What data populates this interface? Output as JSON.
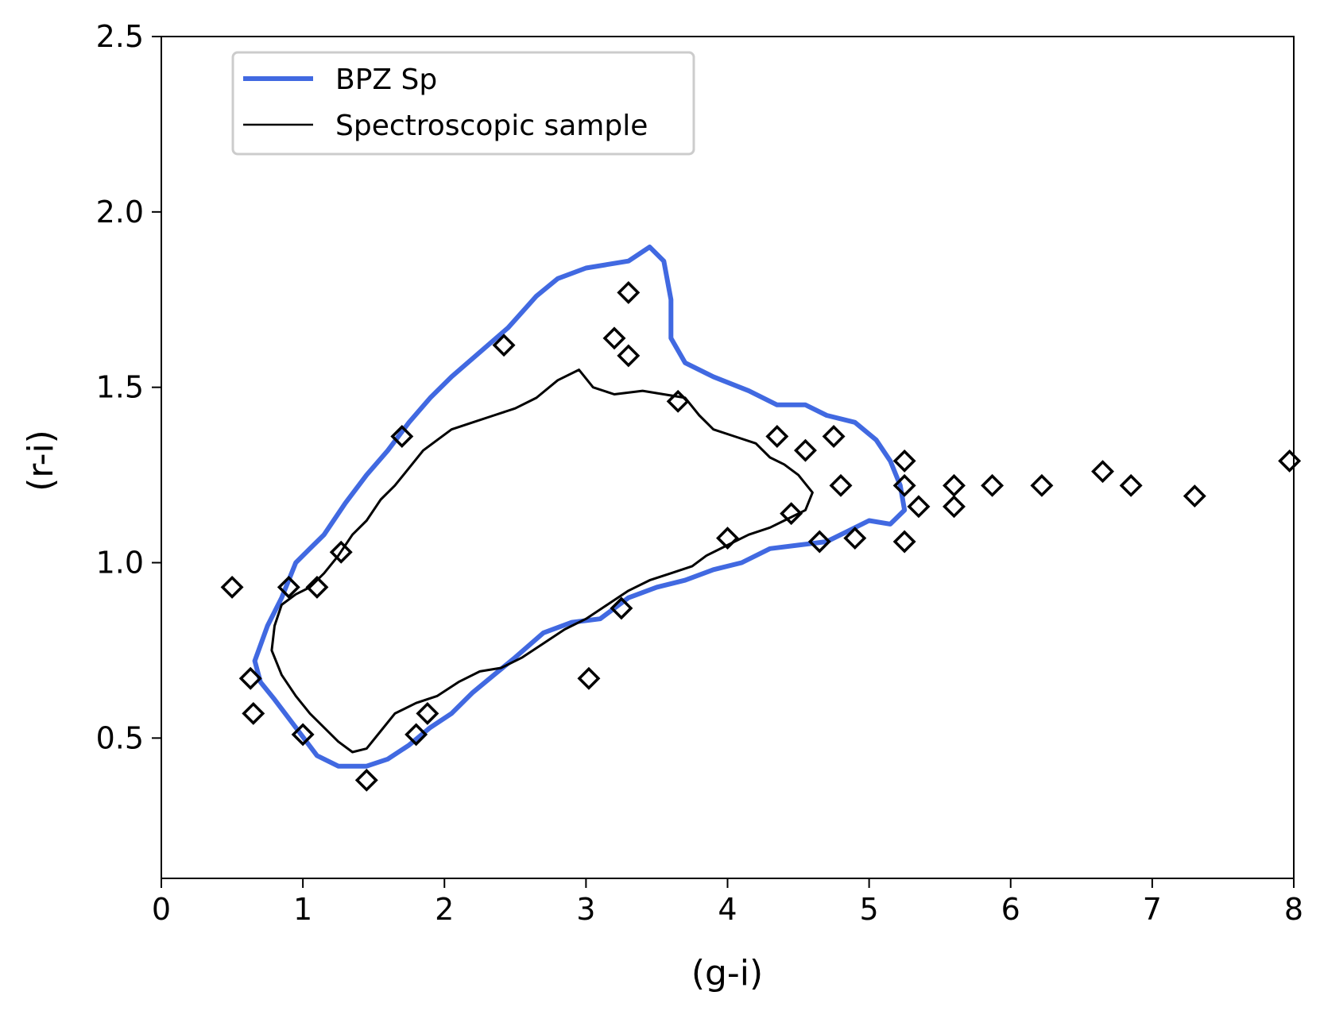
{
  "chart_data": {
    "type": "line",
    "xlabel": "(g-i)",
    "ylabel": "(r-i)",
    "xlim": [
      0,
      8
    ],
    "ylim": [
      0.1,
      2.5
    ],
    "x_ticks": [
      "0",
      "1",
      "2",
      "3",
      "4",
      "5",
      "6",
      "7",
      "8"
    ],
    "y_ticks": [
      "0.5",
      "1.0",
      "1.5",
      "2.0",
      "2.5"
    ],
    "grid": false,
    "legend_position": "upper-left",
    "legend": {
      "bpz": "BPZ Sp",
      "spec": "Spectroscopic sample"
    },
    "colors": {
      "bpz": "#4169e1",
      "spec": "#000000"
    },
    "series": [
      {
        "name": "BPZ Sp",
        "closed": true,
        "points": [
          [
            0.66,
            0.72
          ],
          [
            0.75,
            0.82
          ],
          [
            0.85,
            0.9
          ],
          [
            0.95,
            1.0
          ],
          [
            1.05,
            1.04
          ],
          [
            1.15,
            1.08
          ],
          [
            1.3,
            1.17
          ],
          [
            1.45,
            1.25
          ],
          [
            1.6,
            1.32
          ],
          [
            1.75,
            1.4
          ],
          [
            1.9,
            1.47
          ],
          [
            2.05,
            1.53
          ],
          [
            2.25,
            1.6
          ],
          [
            2.45,
            1.67
          ],
          [
            2.65,
            1.76
          ],
          [
            2.8,
            1.81
          ],
          [
            3.0,
            1.84
          ],
          [
            3.15,
            1.85
          ],
          [
            3.3,
            1.86
          ],
          [
            3.45,
            1.9
          ],
          [
            3.55,
            1.86
          ],
          [
            3.6,
            1.75
          ],
          [
            3.6,
            1.64
          ],
          [
            3.7,
            1.57
          ],
          [
            3.9,
            1.53
          ],
          [
            4.15,
            1.49
          ],
          [
            4.35,
            1.45
          ],
          [
            4.55,
            1.45
          ],
          [
            4.7,
            1.42
          ],
          [
            4.9,
            1.4
          ],
          [
            5.05,
            1.35
          ],
          [
            5.15,
            1.29
          ],
          [
            5.22,
            1.22
          ],
          [
            5.25,
            1.15
          ],
          [
            5.15,
            1.11
          ],
          [
            5.0,
            1.12
          ],
          [
            4.85,
            1.09
          ],
          [
            4.7,
            1.06
          ],
          [
            4.5,
            1.05
          ],
          [
            4.3,
            1.04
          ],
          [
            4.1,
            1.0
          ],
          [
            3.9,
            0.98
          ],
          [
            3.7,
            0.95
          ],
          [
            3.5,
            0.93
          ],
          [
            3.3,
            0.9
          ],
          [
            3.1,
            0.84
          ],
          [
            2.9,
            0.83
          ],
          [
            2.7,
            0.8
          ],
          [
            2.5,
            0.73
          ],
          [
            2.35,
            0.68
          ],
          [
            2.2,
            0.63
          ],
          [
            2.05,
            0.57
          ],
          [
            1.9,
            0.53
          ],
          [
            1.75,
            0.48
          ],
          [
            1.6,
            0.44
          ],
          [
            1.45,
            0.42
          ],
          [
            1.25,
            0.42
          ],
          [
            1.1,
            0.45
          ],
          [
            0.95,
            0.53
          ],
          [
            0.8,
            0.61
          ],
          [
            0.7,
            0.66
          ]
        ]
      },
      {
        "name": "Spectroscopic sample",
        "closed": true,
        "points": [
          [
            0.8,
            0.82
          ],
          [
            0.85,
            0.88
          ],
          [
            0.95,
            0.91
          ],
          [
            1.05,
            0.93
          ],
          [
            1.15,
            0.97
          ],
          [
            1.25,
            1.02
          ],
          [
            1.35,
            1.08
          ],
          [
            1.45,
            1.12
          ],
          [
            1.55,
            1.18
          ],
          [
            1.65,
            1.22
          ],
          [
            1.75,
            1.27
          ],
          [
            1.85,
            1.32
          ],
          [
            1.95,
            1.35
          ],
          [
            2.05,
            1.38
          ],
          [
            2.2,
            1.4
          ],
          [
            2.35,
            1.42
          ],
          [
            2.5,
            1.44
          ],
          [
            2.65,
            1.47
          ],
          [
            2.8,
            1.52
          ],
          [
            2.95,
            1.55
          ],
          [
            3.05,
            1.5
          ],
          [
            3.2,
            1.48
          ],
          [
            3.4,
            1.49
          ],
          [
            3.55,
            1.48
          ],
          [
            3.7,
            1.47
          ],
          [
            3.8,
            1.42
          ],
          [
            3.9,
            1.38
          ],
          [
            4.05,
            1.36
          ],
          [
            4.2,
            1.34
          ],
          [
            4.3,
            1.3
          ],
          [
            4.4,
            1.28
          ],
          [
            4.5,
            1.25
          ],
          [
            4.6,
            1.2
          ],
          [
            4.55,
            1.15
          ],
          [
            4.4,
            1.12
          ],
          [
            4.3,
            1.1
          ],
          [
            4.15,
            1.08
          ],
          [
            4.0,
            1.05
          ],
          [
            3.85,
            1.02
          ],
          [
            3.75,
            0.99
          ],
          [
            3.6,
            0.97
          ],
          [
            3.45,
            0.95
          ],
          [
            3.3,
            0.92
          ],
          [
            3.15,
            0.88
          ],
          [
            3.0,
            0.84
          ],
          [
            2.85,
            0.81
          ],
          [
            2.7,
            0.77
          ],
          [
            2.55,
            0.73
          ],
          [
            2.4,
            0.7
          ],
          [
            2.25,
            0.69
          ],
          [
            2.1,
            0.66
          ],
          [
            1.95,
            0.62
          ],
          [
            1.8,
            0.6
          ],
          [
            1.65,
            0.57
          ],
          [
            1.55,
            0.52
          ],
          [
            1.45,
            0.47
          ],
          [
            1.35,
            0.46
          ],
          [
            1.25,
            0.49
          ],
          [
            1.15,
            0.53
          ],
          [
            1.05,
            0.57
          ],
          [
            0.95,
            0.62
          ],
          [
            0.85,
            0.68
          ],
          [
            0.78,
            0.75
          ]
        ]
      }
    ],
    "markers": [
      {
        "x": 0.5,
        "y": 0.93
      },
      {
        "x": 0.63,
        "y": 0.67
      },
      {
        "x": 0.65,
        "y": 0.57
      },
      {
        "x": 0.9,
        "y": 0.93
      },
      {
        "x": 1.0,
        "y": 0.51
      },
      {
        "x": 1.1,
        "y": 0.93
      },
      {
        "x": 1.27,
        "y": 1.03
      },
      {
        "x": 1.45,
        "y": 0.38
      },
      {
        "x": 1.7,
        "y": 1.36
      },
      {
        "x": 1.8,
        "y": 0.51
      },
      {
        "x": 1.88,
        "y": 0.57
      },
      {
        "x": 2.42,
        "y": 1.62
      },
      {
        "x": 3.02,
        "y": 0.67
      },
      {
        "x": 3.2,
        "y": 1.64
      },
      {
        "x": 3.25,
        "y": 0.87
      },
      {
        "x": 3.3,
        "y": 1.77
      },
      {
        "x": 3.3,
        "y": 1.59
      },
      {
        "x": 3.65,
        "y": 1.46
      },
      {
        "x": 4.0,
        "y": 1.07
      },
      {
        "x": 4.35,
        "y": 1.36
      },
      {
        "x": 4.45,
        "y": 1.14
      },
      {
        "x": 4.55,
        "y": 1.32
      },
      {
        "x": 4.65,
        "y": 1.06
      },
      {
        "x": 4.75,
        "y": 1.36
      },
      {
        "x": 4.8,
        "y": 1.22
      },
      {
        "x": 4.9,
        "y": 1.07
      },
      {
        "x": 5.25,
        "y": 1.29
      },
      {
        "x": 5.25,
        "y": 1.22
      },
      {
        "x": 5.25,
        "y": 1.06
      },
      {
        "x": 5.35,
        "y": 1.16
      },
      {
        "x": 5.6,
        "y": 1.22
      },
      {
        "x": 5.6,
        "y": 1.16
      },
      {
        "x": 5.87,
        "y": 1.22
      },
      {
        "x": 6.22,
        "y": 1.22
      },
      {
        "x": 6.65,
        "y": 1.26
      },
      {
        "x": 6.85,
        "y": 1.22
      },
      {
        "x": 7.3,
        "y": 1.19
      },
      {
        "x": 7.97,
        "y": 1.29
      }
    ]
  }
}
